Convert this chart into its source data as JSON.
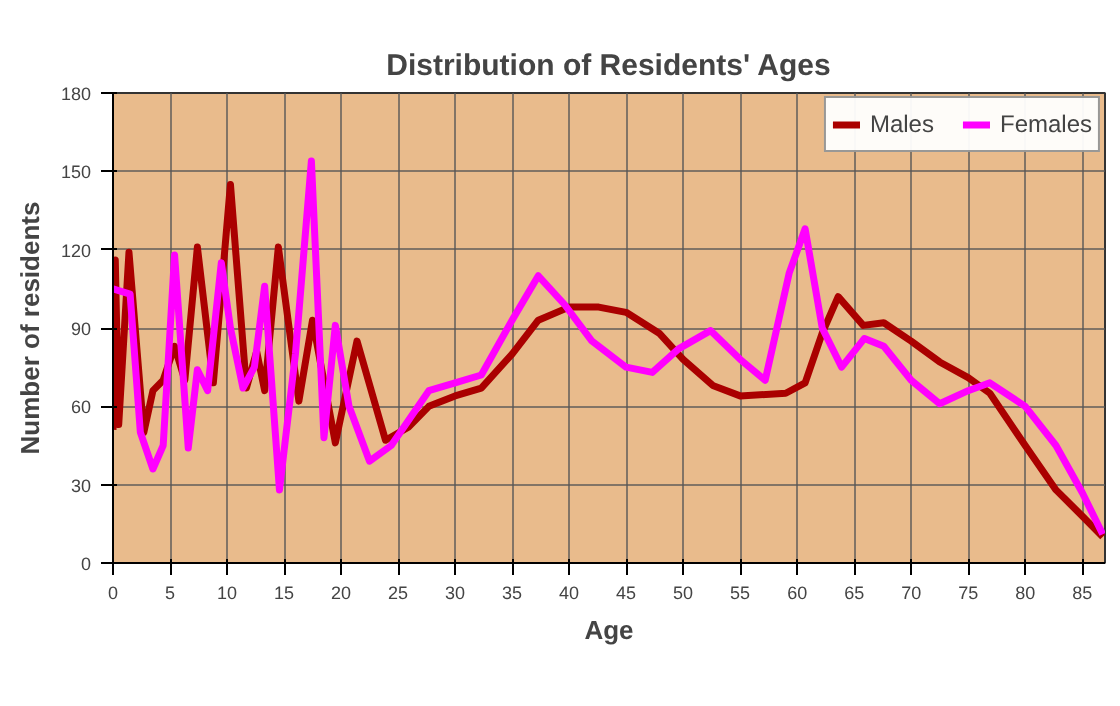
{
  "chart_data": {
    "type": "line",
    "title": "Distribution of Residents' Ages",
    "xlabel": "Age",
    "ylabel": "Number of residents",
    "xlim": [
      0,
      87
    ],
    "xticks": [
      0,
      5,
      10,
      15,
      20,
      25,
      30,
      35,
      40,
      45,
      50,
      55,
      60,
      65,
      70,
      75,
      80,
      85
    ],
    "ylim": [
      0,
      180
    ],
    "yticks": [
      0,
      30,
      60,
      90,
      120,
      150,
      180
    ],
    "grid": true,
    "legend": "top right",
    "line_style": "solid",
    "series": [
      {
        "name": "Males",
        "color": "#aa0000",
        "x": [
          0,
          0.2,
          0.5,
          1.4,
          2.7,
          3.5,
          4.4,
          5.4,
          6.3,
          7.4,
          8.8,
          10.3,
          11.7,
          12.6,
          13.3,
          14.5,
          16.3,
          17.5,
          19.5,
          21.4,
          23.9,
          25.9,
          27.7,
          30,
          32.3,
          35,
          37.3,
          40,
          42.6,
          45,
          47.9,
          50,
          52.6,
          55,
          59,
          60.7,
          62.2,
          63.6,
          65.8,
          67.6,
          70,
          72.5,
          75,
          76.9,
          80,
          82.7,
          85,
          86.8
        ],
        "values": [
          51,
          116,
          53,
          119,
          50,
          66,
          70,
          83,
          70,
          121,
          69,
          145,
          67,
          81,
          66,
          121,
          62,
          93,
          46,
          85,
          47,
          52,
          60,
          64,
          67,
          80,
          93,
          98,
          98,
          96,
          88,
          78,
          68,
          64,
          65,
          69,
          88,
          102,
          91,
          92,
          85,
          77,
          71,
          65,
          45,
          28,
          18,
          10
        ]
      },
      {
        "name": "Females",
        "color": "#ff00ff",
        "x": [
          0,
          1.5,
          2.4,
          3.5,
          4.4,
          5.4,
          6.6,
          7.4,
          8.3,
          9.5,
          10.3,
          11.4,
          12.4,
          13.3,
          14.6,
          16,
          17.4,
          18.5,
          19.5,
          20.7,
          22.5,
          24.4,
          27.7,
          30,
          32.3,
          35,
          37.3,
          39.6,
          42,
          45,
          47.3,
          49.6,
          52.4,
          55,
          57.2,
          59.3,
          60.7,
          62.2,
          63.9,
          65.9,
          67.6,
          70,
          72.5,
          75,
          76.9,
          80,
          82.7,
          85,
          86.8
        ],
        "values": [
          105,
          103,
          50,
          36,
          45,
          118,
          44,
          74,
          66,
          115,
          90,
          67,
          75,
          106,
          28,
          80,
          154,
          48,
          91,
          60,
          39,
          45,
          66,
          69,
          72,
          93,
          110,
          99,
          85,
          75,
          73,
          82,
          89,
          78,
          70,
          111,
          128,
          90,
          75,
          86,
          83,
          70,
          61,
          66,
          69,
          60,
          45,
          27,
          11
        ]
      }
    ]
  }
}
